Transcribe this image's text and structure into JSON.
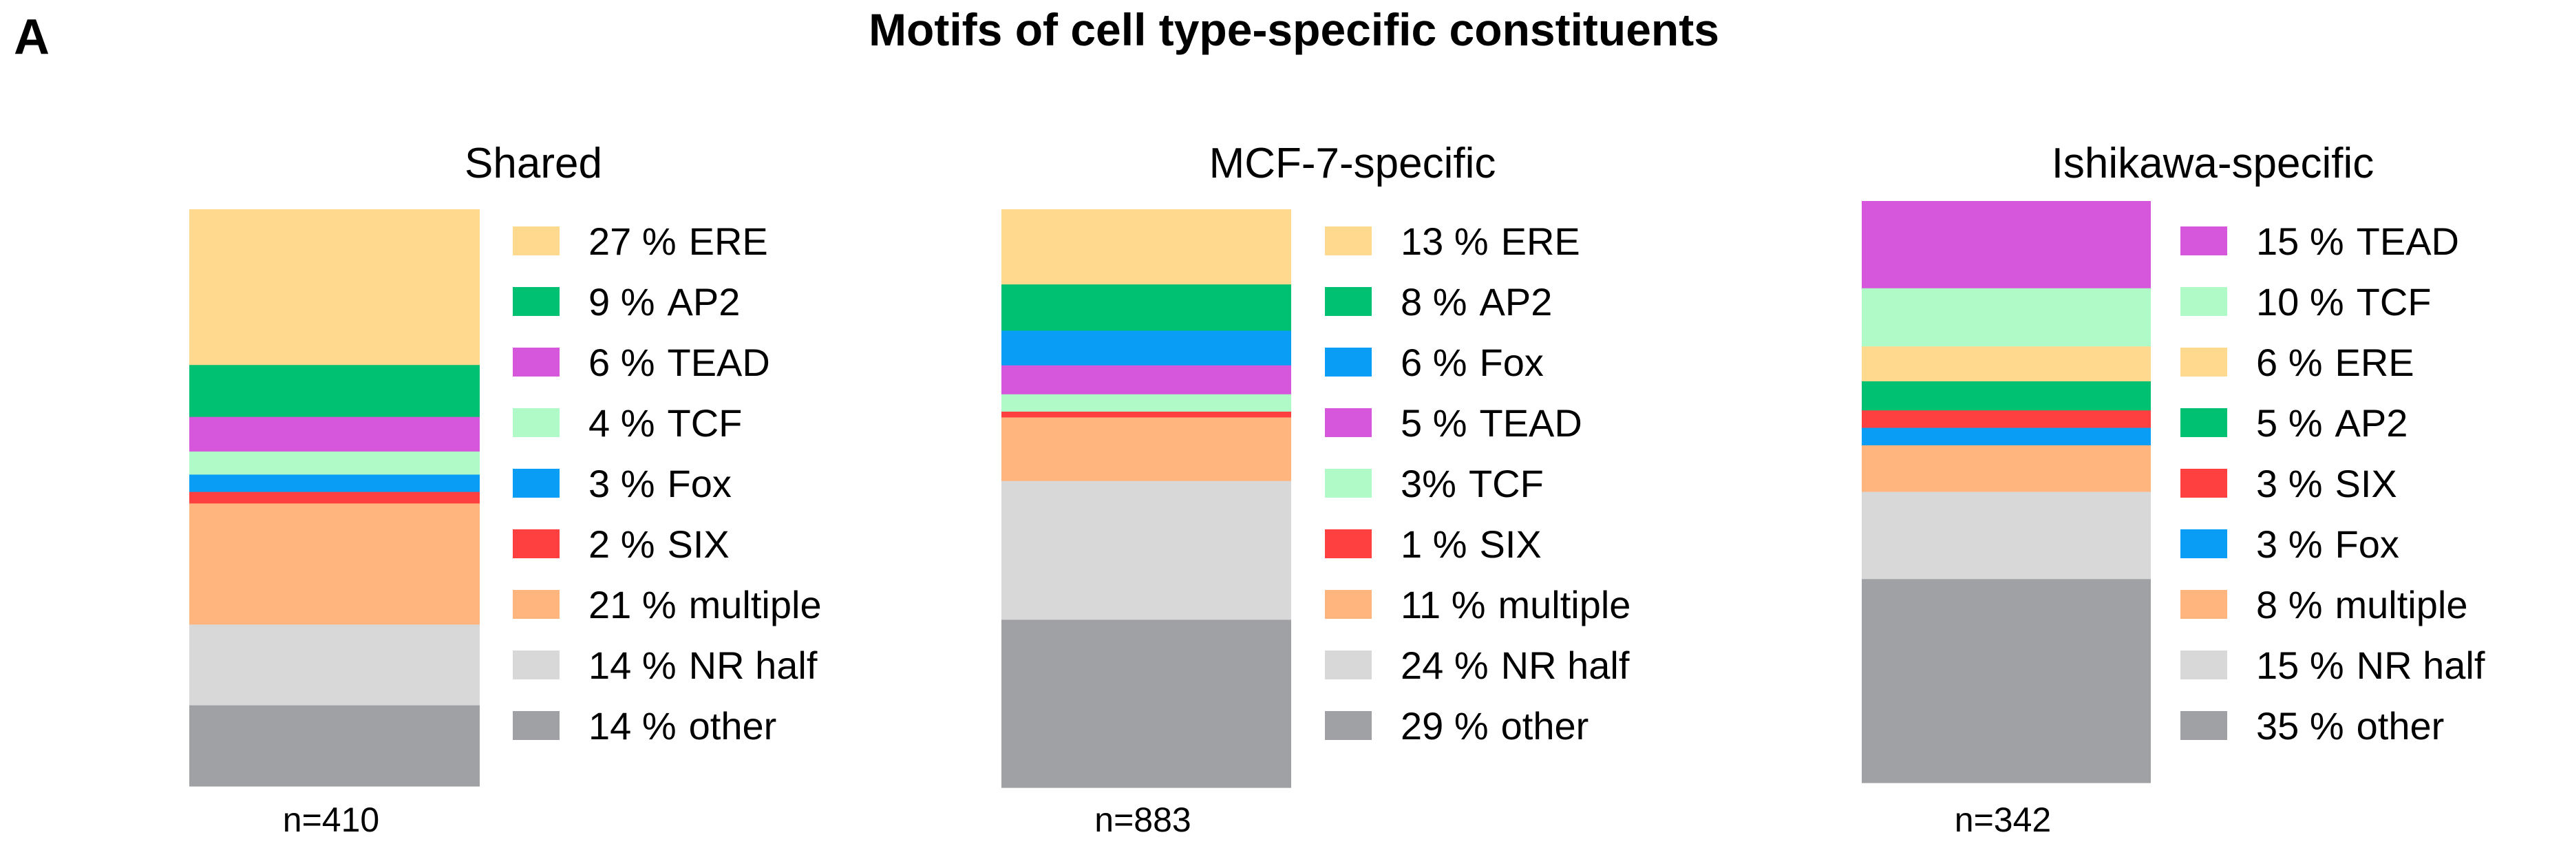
{
  "figure": {
    "panel_label": "A",
    "title": "Motifs of cell type-specific constituents"
  },
  "chart_data": [
    {
      "type": "bar",
      "stacked": true,
      "title": "Shared",
      "n_label": "n=410",
      "segments": [
        {
          "label": "ERE",
          "value": 27,
          "value_label": "27 %",
          "color": "#FFD98D"
        },
        {
          "label": "AP2",
          "value": 9,
          "value_label": "9 %",
          "color": "#00C072"
        },
        {
          "label": "TEAD",
          "value": 6,
          "value_label": "6 %",
          "color": "#D657DB"
        },
        {
          "label": "TCF",
          "value": 4,
          "value_label": "4 %",
          "color": "#B0FAC8"
        },
        {
          "label": "Fox",
          "value": 3,
          "value_label": "3 %",
          "color": "#0A9DF5"
        },
        {
          "label": "SIX",
          "value": 2,
          "value_label": "2 %",
          "color": "#FF4040"
        },
        {
          "label": "multiple",
          "value": 21,
          "value_label": "21 %",
          "color": "#FFB57D"
        },
        {
          "label": "NR half",
          "value": 14,
          "value_label": "14 %",
          "color": "#D8D8D8"
        },
        {
          "label": "other",
          "value": 14,
          "value_label": "14 %",
          "color": "#A0A1A4"
        }
      ]
    },
    {
      "type": "bar",
      "stacked": true,
      "title": "MCF-7-specific",
      "n_label": "n=883",
      "segments": [
        {
          "label": "ERE",
          "value": 13,
          "value_label": "13 %",
          "color": "#FFD98D"
        },
        {
          "label": "AP2",
          "value": 8,
          "value_label": "8 %",
          "color": "#00C072"
        },
        {
          "label": "Fox",
          "value": 6,
          "value_label": "6 %",
          "color": "#0A9DF5"
        },
        {
          "label": "TEAD",
          "value": 5,
          "value_label": "5 %",
          "color": "#D657DB"
        },
        {
          "label": "TCF",
          "value": 3,
          "value_label": "3%",
          "color": "#B0FAC8"
        },
        {
          "label": "SIX",
          "value": 1,
          "value_label": "1 %",
          "color": "#FF4040"
        },
        {
          "label": "multiple",
          "value": 11,
          "value_label": "11 %",
          "color": "#FFB57D"
        },
        {
          "label": "NR half",
          "value": 24,
          "value_label": "24 %",
          "color": "#D8D8D8"
        },
        {
          "label": "other",
          "value": 29,
          "value_label": "29 %",
          "color": "#A0A1A4"
        }
      ]
    },
    {
      "type": "bar",
      "stacked": true,
      "title": "Ishikawa-specific",
      "n_label": "n=342",
      "segments": [
        {
          "label": "TEAD",
          "value": 15,
          "value_label": "15 %",
          "color": "#D657DB"
        },
        {
          "label": "TCF",
          "value": 10,
          "value_label": "10 %",
          "color": "#B0FAC8"
        },
        {
          "label": "ERE",
          "value": 6,
          "value_label": "6 %",
          "color": "#FFD98D"
        },
        {
          "label": "AP2",
          "value": 5,
          "value_label": "5 %",
          "color": "#00C072"
        },
        {
          "label": "SIX",
          "value": 3,
          "value_label": "3 %",
          "color": "#FF4040"
        },
        {
          "label": "Fox",
          "value": 3,
          "value_label": "3 %",
          "color": "#0A9DF5"
        },
        {
          "label": "multiple",
          "value": 8,
          "value_label": "8 %",
          "color": "#FFB57D"
        },
        {
          "label": "NR half",
          "value": 15,
          "value_label": "15 %",
          "color": "#D8D8D8"
        },
        {
          "label": "other",
          "value": 35,
          "value_label": "35 %",
          "color": "#A0A1A4"
        }
      ]
    }
  ]
}
